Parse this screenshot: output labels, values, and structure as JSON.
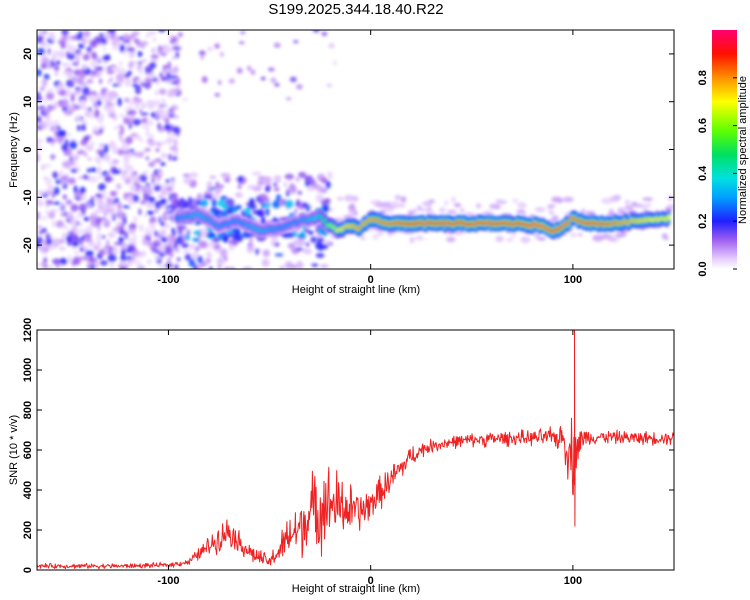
{
  "title": "S199.2025.344.18.40.R22",
  "chart_data": [
    {
      "type": "heatmap",
      "name": "spectrogram",
      "xlabel": "Height of straight line (km)",
      "ylabel": "Frequency (Hz)",
      "xlim": [
        -165,
        150
      ],
      "ylim": [
        -25,
        25
      ],
      "xticks": [
        -100,
        0,
        100
      ],
      "yticks": [
        20,
        10,
        0,
        -10,
        -20
      ],
      "colorbar": {
        "label": "Normalized spectral amplitude",
        "range": [
          0.0,
          1.0
        ],
        "ticks": [
          "0.0",
          "0.2",
          "0.4",
          "0.6",
          "0.8"
        ],
        "colors": [
          "#ffffff",
          "#e6ccff",
          "#8a3cf0",
          "#1a1aff",
          "#00c8ff",
          "#00e080",
          "#4bff00",
          "#ffff00",
          "#ff8000",
          "#ff0000",
          "#ff0066"
        ]
      },
      "ridge": {
        "description": "dominant frequency band",
        "x": [
          -95,
          -85,
          -75,
          -65,
          -55,
          -45,
          -35,
          -25,
          -20,
          -15,
          -10,
          -5,
          0,
          10,
          20,
          40,
          60,
          75,
          85,
          90,
          95,
          100,
          110,
          120,
          130,
          140,
          148
        ],
        "freq_hz": [
          -14.5,
          -13.5,
          -16,
          -15,
          -17,
          -16.5,
          -15,
          -14,
          -16,
          -17,
          -16,
          -16.5,
          -14.5,
          -15.5,
          -15.5,
          -15.5,
          -15.5,
          -15.5,
          -16,
          -17,
          -16.5,
          -14.5,
          -15.5,
          -15.5,
          -15,
          -14.5,
          -14.5
        ],
        "peak_amplitude": [
          0.3,
          0.35,
          0.3,
          0.3,
          0.35,
          0.3,
          0.3,
          0.4,
          0.6,
          0.7,
          0.75,
          0.8,
          0.8,
          0.85,
          0.9,
          0.9,
          0.9,
          0.9,
          0.95,
          0.9,
          0.9,
          0.85,
          0.9,
          0.85,
          0.75,
          0.7,
          0.7
        ]
      }
    },
    {
      "type": "line",
      "name": "snr",
      "xlabel": "Height of straight line (km)",
      "ylabel": "SNR (10 * v/v)",
      "xlim": [
        -165,
        150
      ],
      "ylim": [
        0,
        1200
      ],
      "xticks": [
        -100,
        0,
        100
      ],
      "yticks": [
        0,
        200,
        400,
        600,
        800,
        1000,
        1200
      ],
      "color": "#ee2222",
      "series": [
        {
          "name": "SNR envelope",
          "x": [
            -165,
            -140,
            -120,
            -100,
            -90,
            -80,
            -75,
            -70,
            -65,
            -60,
            -55,
            -50,
            -45,
            -40,
            -35,
            -30,
            -25,
            -20,
            -15,
            -10,
            -5,
            0,
            5,
            10,
            15,
            20,
            25,
            30,
            40,
            50,
            60,
            70,
            80,
            90,
            95,
            98,
            100,
            102,
            105,
            110,
            120,
            130,
            140,
            150
          ],
          "y": [
            20,
            20,
            20,
            25,
            40,
            120,
            160,
            200,
            140,
            90,
            60,
            40,
            100,
            170,
            210,
            280,
            320,
            330,
            320,
            300,
            290,
            330,
            390,
            450,
            510,
            570,
            600,
            620,
            640,
            650,
            655,
            660,
            660,
            665,
            660,
            600,
            560,
            610,
            660,
            665,
            665,
            660,
            660,
            660
          ],
          "spread": [
            15,
            15,
            15,
            15,
            20,
            60,
            80,
            90,
            70,
            60,
            50,
            40,
            90,
            140,
            180,
            220,
            260,
            240,
            200,
            160,
            120,
            100,
            100,
            90,
            80,
            60,
            50,
            40,
            40,
            40,
            45,
            45,
            45,
            60,
            90,
            200,
            260,
            150,
            60,
            40,
            40,
            40,
            40,
            40
          ]
        }
      ],
      "annotations": [
        {
          "x": 101,
          "y": 1200,
          "label": "spike max"
        },
        {
          "x": 101,
          "y": 220,
          "label": "spike min"
        }
      ]
    }
  ]
}
